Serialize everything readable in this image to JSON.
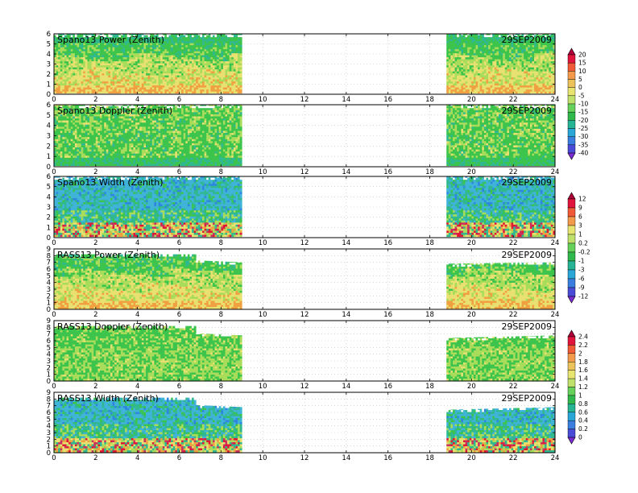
{
  "chart_data": [
    {
      "type": "heatmap",
      "title": "Spano13 Power (Zenith)",
      "date": "29SEP2009",
      "xlim": [
        0,
        24
      ],
      "ylim": [
        0,
        6
      ],
      "x_ticks": [
        "0",
        "2",
        "4",
        "6",
        "8",
        "10",
        "12",
        "14",
        "16",
        "18",
        "20",
        "22",
        "24"
      ],
      "y_ticks": [
        "0",
        "1",
        "2",
        "3",
        "4",
        "5",
        "6"
      ],
      "data_segments": [
        [
          0,
          9
        ],
        [
          18.8,
          24
        ]
      ],
      "top_profile": {
        "x": [
          0,
          9,
          18.8,
          24
        ],
        "y": [
          6,
          6,
          6,
          6
        ]
      },
      "grid": true,
      "colorbar": "power"
    },
    {
      "type": "heatmap",
      "title": "Spano13 Doppler (Zenith)",
      "date": "29SEP2009",
      "xlim": [
        0,
        24
      ],
      "ylim": [
        0,
        6
      ],
      "x_ticks": [
        "0",
        "2",
        "4",
        "6",
        "8",
        "10",
        "12",
        "14",
        "16",
        "18",
        "20",
        "22",
        "24"
      ],
      "y_ticks": [
        "0",
        "1",
        "2",
        "3",
        "4",
        "5",
        "6"
      ],
      "data_segments": [
        [
          0,
          9
        ],
        [
          18.8,
          24
        ]
      ],
      "top_profile": {
        "x": [
          0,
          9,
          18.8,
          24
        ],
        "y": [
          6,
          6,
          6,
          6
        ]
      },
      "grid": true,
      "colorbar": "power"
    },
    {
      "type": "heatmap",
      "title": "Spano13 Width (Zenith)",
      "date": "29SEP2009",
      "xlim": [
        0,
        24
      ],
      "ylim": [
        0,
        6
      ],
      "x_ticks": [
        "0",
        "2",
        "4",
        "6",
        "8",
        "10",
        "12",
        "14",
        "16",
        "18",
        "20",
        "22",
        "24"
      ],
      "y_ticks": [
        "0",
        "1",
        "2",
        "3",
        "4",
        "5",
        "6"
      ],
      "data_segments": [
        [
          0,
          9
        ],
        [
          18.8,
          24
        ]
      ],
      "top_profile": {
        "x": [
          0,
          9,
          18.8,
          24
        ],
        "y": [
          6,
          6,
          6,
          6
        ]
      },
      "grid": true,
      "colorbar": "width"
    },
    {
      "type": "heatmap",
      "title": "RASS13 Power (Zenith)",
      "date": "29SEP2009",
      "xlim": [
        0,
        24
      ],
      "ylim": [
        0,
        9
      ],
      "x_ticks": [
        "0",
        "2",
        "4",
        "6",
        "8",
        "10",
        "12",
        "14",
        "16",
        "18",
        "20",
        "22",
        "24"
      ],
      "y_ticks": [
        "0",
        "1",
        "2",
        "3",
        "4",
        "5",
        "6",
        "7",
        "8",
        "9"
      ],
      "data_segments": [
        [
          0,
          9
        ],
        [
          18.8,
          24
        ]
      ],
      "top_profile": {
        "x": [
          0,
          6.8,
          6.8,
          9,
          18.8,
          24
        ],
        "y": [
          8.2,
          8.2,
          7.3,
          7.0,
          6.8,
          7.0
        ]
      },
      "grid": true,
      "colorbar": "rass_power"
    },
    {
      "type": "heatmap",
      "title": "RASS13 Doppler (Zenith)",
      "date": "29SEP2009",
      "xlim": [
        0,
        24
      ],
      "ylim": [
        0,
        9
      ],
      "x_ticks": [
        "0",
        "2",
        "4",
        "6",
        "8",
        "10",
        "12",
        "14",
        "16",
        "18",
        "20",
        "22",
        "24"
      ],
      "y_ticks": [
        "0",
        "1",
        "2",
        "3",
        "4",
        "5",
        "6",
        "7",
        "8",
        "9"
      ],
      "data_segments": [
        [
          0,
          9
        ],
        [
          18.8,
          24
        ]
      ],
      "top_profile": {
        "x": [
          0,
          6.8,
          6.8,
          9,
          18.8,
          24
        ],
        "y": [
          8.2,
          8.2,
          7.1,
          6.8,
          6.4,
          6.8
        ]
      },
      "grid": true,
      "colorbar": "rass_width"
    },
    {
      "type": "heatmap",
      "title": "RASS13 Width (Zenith)",
      "date": "29SEP2009",
      "xlim": [
        0,
        24
      ],
      "ylim": [
        0,
        9
      ],
      "x_ticks": [
        "0",
        "2",
        "4",
        "6",
        "8",
        "10",
        "12",
        "14",
        "16",
        "18",
        "20",
        "22",
        "24"
      ],
      "y_ticks": [
        "0",
        "1",
        "2",
        "3",
        "4",
        "5",
        "6",
        "7",
        "8",
        "9"
      ],
      "data_segments": [
        [
          0,
          9
        ],
        [
          18.8,
          24
        ]
      ],
      "top_profile": {
        "x": [
          0,
          6.8,
          6.8,
          9,
          18.8,
          24
        ],
        "y": [
          8.2,
          8.2,
          7.1,
          6.8,
          6.4,
          6.8
        ]
      },
      "grid": true,
      "colorbar": "rass_width"
    }
  ],
  "colorbars": {
    "power": {
      "labels": [
        "20",
        "15",
        "10",
        "5",
        "0",
        "-5",
        "-10",
        "-15",
        "-20",
        "-25",
        "-30",
        "-35",
        "-40"
      ],
      "colors": [
        "#b0003a",
        "#e0143c",
        "#f05a36",
        "#f39b4b",
        "#ecc25a",
        "#e8e470",
        "#bfe06a",
        "#66d15a",
        "#2fb84c",
        "#26b594",
        "#29a8d8",
        "#3a7fe0",
        "#4a4cd8",
        "#7b2bd4"
      ]
    },
    "width": {
      "labels": [
        "12",
        "9",
        "6",
        "3",
        "1",
        "0.2",
        "-0.2",
        "-1",
        "-3",
        "-6",
        "-9",
        "-12"
      ],
      "colors": [
        "#b0003a",
        "#e0143c",
        "#f05a36",
        "#f39b4b",
        "#e8e470",
        "#bfe06a",
        "#66d15a",
        "#2fb84c",
        "#26b594",
        "#29a8d8",
        "#3a7fe0",
        "#4a4cd8",
        "#7b2bd4"
      ]
    },
    "rass_width": {
      "labels": [
        "2.4",
        "2.2",
        "2",
        "1.8",
        "1.6",
        "1.4",
        "1.2",
        "1",
        "0.8",
        "0.6",
        "0.4",
        "0.2",
        "0"
      ],
      "colors": [
        "#b0003a",
        "#e0143c",
        "#f05a36",
        "#f39b4b",
        "#ecc25a",
        "#e8e470",
        "#bfe06a",
        "#66d15a",
        "#2fb84c",
        "#26b594",
        "#29a8d8",
        "#3a7fe0",
        "#4a4cd8",
        "#7b2bd4"
      ]
    }
  },
  "palettes": {
    "yellow": "#e8e070",
    "lightgreen": "#a8dc5a",
    "green": "#3cc44c",
    "teal": "#30b890",
    "cyan": "#40b4d8",
    "blue": "#2e86e0",
    "orange": "#f0a040",
    "red": "#e01838",
    "purple": "#c83060",
    "white": "#ffffff"
  }
}
